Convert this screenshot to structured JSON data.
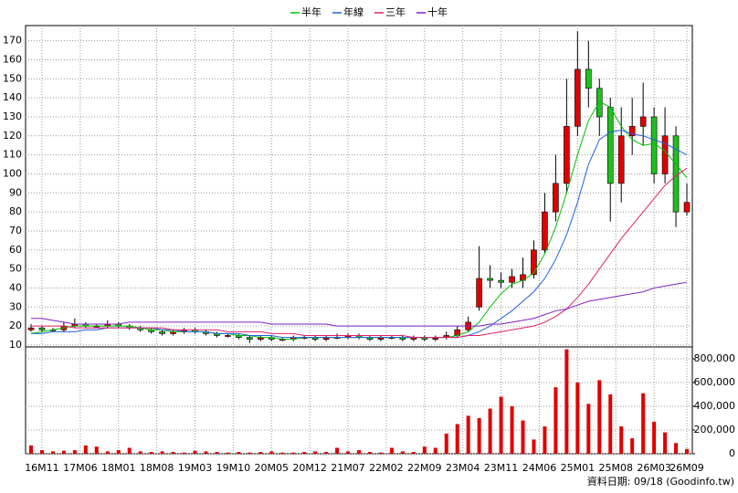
{
  "chart_data": [
    {
      "type": "candlestick",
      "legend": "top",
      "grid": true,
      "up_color": "#e00000",
      "down_color": "#20c020",
      "x": [
        0,
        2,
        4,
        6,
        8,
        10,
        12,
        14,
        16,
        18,
        20,
        22,
        24,
        26,
        28,
        30,
        32,
        34,
        36,
        38,
        40,
        42,
        44,
        46,
        48,
        50,
        52,
        54,
        56,
        58,
        60,
        62,
        64,
        66,
        68,
        70,
        72,
        74,
        76,
        78,
        80,
        82,
        84,
        86,
        88,
        90,
        92,
        94,
        96,
        98,
        100,
        102,
        104,
        106,
        108,
        110,
        112,
        114,
        116,
        118,
        120
      ],
      "ohlc": [
        [
          18,
          21,
          17,
          19
        ],
        [
          19,
          20,
          17,
          18
        ],
        [
          18,
          19,
          17,
          18
        ],
        [
          18,
          22,
          17,
          20
        ],
        [
          20,
          24,
          19,
          21
        ],
        [
          21,
          22,
          19,
          20
        ],
        [
          20,
          21,
          19,
          20
        ],
        [
          20,
          23,
          19,
          21
        ],
        [
          21,
          22,
          19,
          20
        ],
        [
          20,
          21,
          18,
          19
        ],
        [
          19,
          20,
          17,
          18
        ],
        [
          18,
          19,
          16,
          17
        ],
        [
          17,
          18,
          15,
          16
        ],
        [
          16,
          18,
          15,
          17
        ],
        [
          17,
          19,
          16,
          18
        ],
        [
          18,
          19,
          16,
          17
        ],
        [
          17,
          18,
          15,
          16
        ],
        [
          16,
          17,
          14,
          15
        ],
        [
          15,
          16,
          14,
          15
        ],
        [
          15,
          16,
          13,
          14
        ],
        [
          14,
          15,
          11,
          13
        ],
        [
          13,
          15,
          12,
          14
        ],
        [
          14,
          15,
          12,
          13
        ],
        [
          13,
          14,
          12,
          13
        ],
        [
          13,
          15,
          12,
          14
        ],
        [
          14,
          15,
          13,
          14
        ],
        [
          14,
          15,
          12,
          13
        ],
        [
          13,
          15,
          12,
          14
        ],
        [
          14,
          16,
          13,
          14
        ],
        [
          14,
          16,
          13,
          15
        ],
        [
          15,
          16,
          13,
          14
        ],
        [
          14,
          15,
          12,
          13
        ],
        [
          13,
          15,
          12,
          14
        ],
        [
          14,
          15,
          13,
          14
        ],
        [
          14,
          15,
          12,
          13
        ],
        [
          13,
          15,
          12,
          14
        ],
        [
          14,
          15,
          12,
          13
        ],
        [
          13,
          15,
          12,
          14
        ],
        [
          14,
          17,
          13,
          15
        ],
        [
          15,
          20,
          14,
          18
        ],
        [
          18,
          25,
          17,
          22
        ],
        [
          30,
          62,
          28,
          45
        ],
        [
          45,
          52,
          40,
          44
        ],
        [
          44,
          48,
          40,
          43
        ],
        [
          43,
          50,
          40,
          46
        ],
        [
          44,
          56,
          40,
          47
        ],
        [
          47,
          65,
          45,
          60
        ],
        [
          60,
          90,
          58,
          80
        ],
        [
          80,
          110,
          75,
          95
        ],
        [
          95,
          150,
          90,
          125
        ],
        [
          125,
          175,
          120,
          155
        ],
        [
          155,
          170,
          135,
          145
        ],
        [
          145,
          150,
          120,
          130
        ],
        [
          135,
          140,
          75,
          95
        ],
        [
          95,
          135,
          85,
          120
        ],
        [
          120,
          140,
          110,
          125
        ],
        [
          125,
          148,
          115,
          130
        ],
        [
          130,
          135,
          95,
          100
        ],
        [
          100,
          135,
          95,
          120
        ],
        [
          120,
          125,
          72,
          80
        ],
        [
          80,
          95,
          78,
          85
        ]
      ],
      "series": [
        {
          "name": "半年",
          "color": "#00c000",
          "values": [
            16,
            17,
            18,
            19,
            20,
            20,
            20,
            20,
            20,
            20,
            19,
            18,
            18,
            17,
            17,
            17,
            17,
            16,
            16,
            15,
            15,
            14,
            14,
            13,
            13,
            14,
            14,
            14,
            14,
            14,
            14,
            14,
            14,
            14,
            14,
            14,
            14,
            14,
            14,
            15,
            17,
            22,
            30,
            37,
            42,
            44,
            48,
            58,
            72,
            90,
            110,
            128,
            138,
            135,
            125,
            118,
            115,
            116,
            112,
            105,
            98
          ]
        },
        {
          "name": "年線",
          "color": "#2060e0",
          "values": [
            16,
            16,
            17,
            17,
            17,
            18,
            18,
            19,
            19,
            19,
            19,
            19,
            18,
            18,
            17,
            17,
            17,
            16,
            16,
            16,
            15,
            15,
            15,
            14,
            14,
            14,
            14,
            14,
            14,
            14,
            14,
            14,
            14,
            14,
            14,
            14,
            14,
            14,
            14,
            14,
            15,
            17,
            20,
            24,
            28,
            33,
            38,
            45,
            55,
            68,
            85,
            105,
            118,
            122,
            123,
            121,
            120,
            118,
            116,
            113,
            110
          ]
        },
        {
          "name": "三年",
          "color": "#e0206a",
          "values": [
            20,
            20,
            20,
            20,
            19,
            19,
            19,
            19,
            19,
            19,
            19,
            19,
            19,
            18,
            18,
            18,
            18,
            18,
            17,
            17,
            17,
            17,
            16,
            16,
            16,
            15,
            15,
            15,
            15,
            15,
            15,
            15,
            15,
            15,
            15,
            14,
            14,
            14,
            14,
            14,
            15,
            15,
            16,
            17,
            18,
            19,
            20,
            22,
            25,
            29,
            35,
            42,
            50,
            58,
            66,
            73,
            80,
            87,
            94,
            99,
            103
          ]
        },
        {
          "name": "十年",
          "color": "#8020c0",
          "values": [
            24,
            24,
            23,
            22,
            21,
            21,
            21,
            21,
            21,
            22,
            22,
            22,
            22,
            22,
            22,
            22,
            22,
            22,
            22,
            22,
            22,
            22,
            21,
            21,
            21,
            21,
            21,
            21,
            20,
            20,
            20,
            20,
            20,
            20,
            20,
            20,
            20,
            20,
            20,
            20,
            20,
            20,
            21,
            21,
            22,
            23,
            24,
            26,
            28,
            29,
            31,
            33,
            34,
            35,
            36,
            37,
            38,
            40,
            41,
            42,
            43
          ]
        }
      ],
      "xlim": [
        -1,
        121
      ],
      "xticks": [
        {
          "value": 2,
          "label": "16M11"
        },
        {
          "value": 9,
          "label": "17M06"
        },
        {
          "value": 16,
          "label": "18M01"
        },
        {
          "value": 23,
          "label": "18M08"
        },
        {
          "value": 30,
          "label": "19M03"
        },
        {
          "value": 37,
          "label": "19M10"
        },
        {
          "value": 44,
          "label": "20M05"
        },
        {
          "value": 51,
          "label": "20M12"
        },
        {
          "value": 58,
          "label": "21M07"
        },
        {
          "value": 65,
          "label": "22M02"
        },
        {
          "value": 72,
          "label": "22M09"
        },
        {
          "value": 79,
          "label": "23M04"
        },
        {
          "value": 86,
          "label": "23M11"
        },
        {
          "value": 93,
          "label": "24M06"
        },
        {
          "value": 100,
          "label": "25M01"
        },
        {
          "value": 107,
          "label": "25M08"
        },
        {
          "value": 114,
          "label": "26M03"
        },
        {
          "value": 120,
          "label": "26M09"
        }
      ],
      "ylim": [
        9,
        178
      ],
      "yticks": [
        10,
        20,
        30,
        40,
        50,
        60,
        70,
        80,
        90,
        100,
        110,
        120,
        130,
        140,
        150,
        160,
        170
      ]
    },
    {
      "type": "bar",
      "grid": true,
      "color": "#e00000",
      "axis_side": "right",
      "x": [
        0,
        2,
        4,
        6,
        8,
        10,
        12,
        14,
        16,
        18,
        20,
        22,
        24,
        26,
        28,
        30,
        32,
        34,
        36,
        38,
        40,
        42,
        44,
        46,
        48,
        50,
        52,
        54,
        56,
        58,
        60,
        62,
        64,
        66,
        68,
        70,
        72,
        74,
        76,
        78,
        80,
        82,
        84,
        86,
        88,
        90,
        92,
        94,
        96,
        98,
        100,
        102,
        104,
        106,
        108,
        110,
        112,
        114,
        116,
        118,
        120
      ],
      "values": [
        70000,
        30000,
        20000,
        25000,
        30000,
        70000,
        60000,
        20000,
        30000,
        50000,
        20000,
        15000,
        20000,
        15000,
        10000,
        25000,
        20000,
        15000,
        10000,
        15000,
        10000,
        15000,
        20000,
        10000,
        10000,
        15000,
        20000,
        15000,
        50000,
        20000,
        30000,
        15000,
        10000,
        50000,
        20000,
        15000,
        60000,
        50000,
        170000,
        250000,
        320000,
        300000,
        380000,
        480000,
        400000,
        280000,
        120000,
        230000,
        560000,
        880000,
        600000,
        420000,
        620000,
        500000,
        230000,
        130000,
        510000,
        270000,
        180000,
        90000,
        40000
      ],
      "xlim": [
        -1,
        121
      ],
      "ylim": [
        0,
        900000
      ],
      "yticks": [
        0,
        {
          "value": 200000,
          "label": "200,000"
        },
        {
          "value": 400000,
          "label": "400,000"
        },
        {
          "value": 600000,
          "label": "600,000"
        },
        {
          "value": 800000,
          "label": "800,000"
        }
      ]
    }
  ],
  "footer": "資料日期: 09/18 (Goodinfo.tw)"
}
